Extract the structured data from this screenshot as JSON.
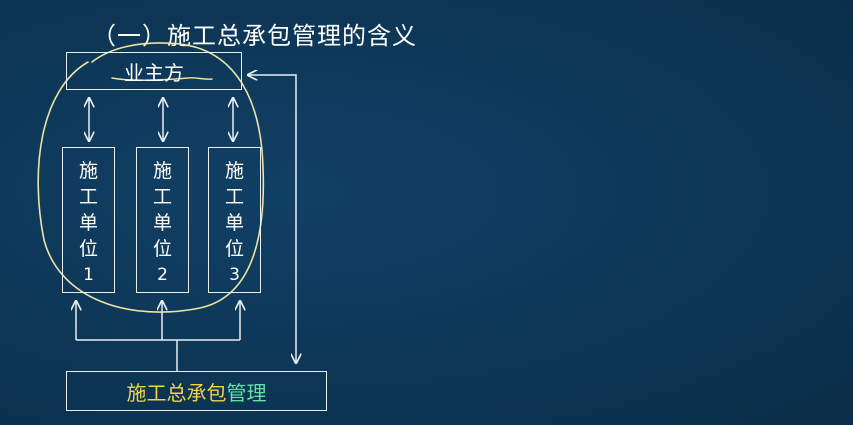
{
  "title": "（一）施工总承包管理的含义",
  "owner": "业主方",
  "units": [
    {
      "chars": [
        "施",
        "工",
        "单",
        "位"
      ],
      "num": "1"
    },
    {
      "chars": [
        "施",
        "工",
        "单",
        "位"
      ],
      "num": "2"
    },
    {
      "chars": [
        "施",
        "工",
        "单",
        "位"
      ],
      "num": "3"
    }
  ],
  "management": {
    "part_a": "施工总承包",
    "part_b": "管理"
  },
  "colors": {
    "background": "#0d3656",
    "line": "#e8eef3",
    "highlight_yellow": "#f2d44b",
    "highlight_green": "#66e0a8",
    "annotation": "#ece3a4"
  }
}
